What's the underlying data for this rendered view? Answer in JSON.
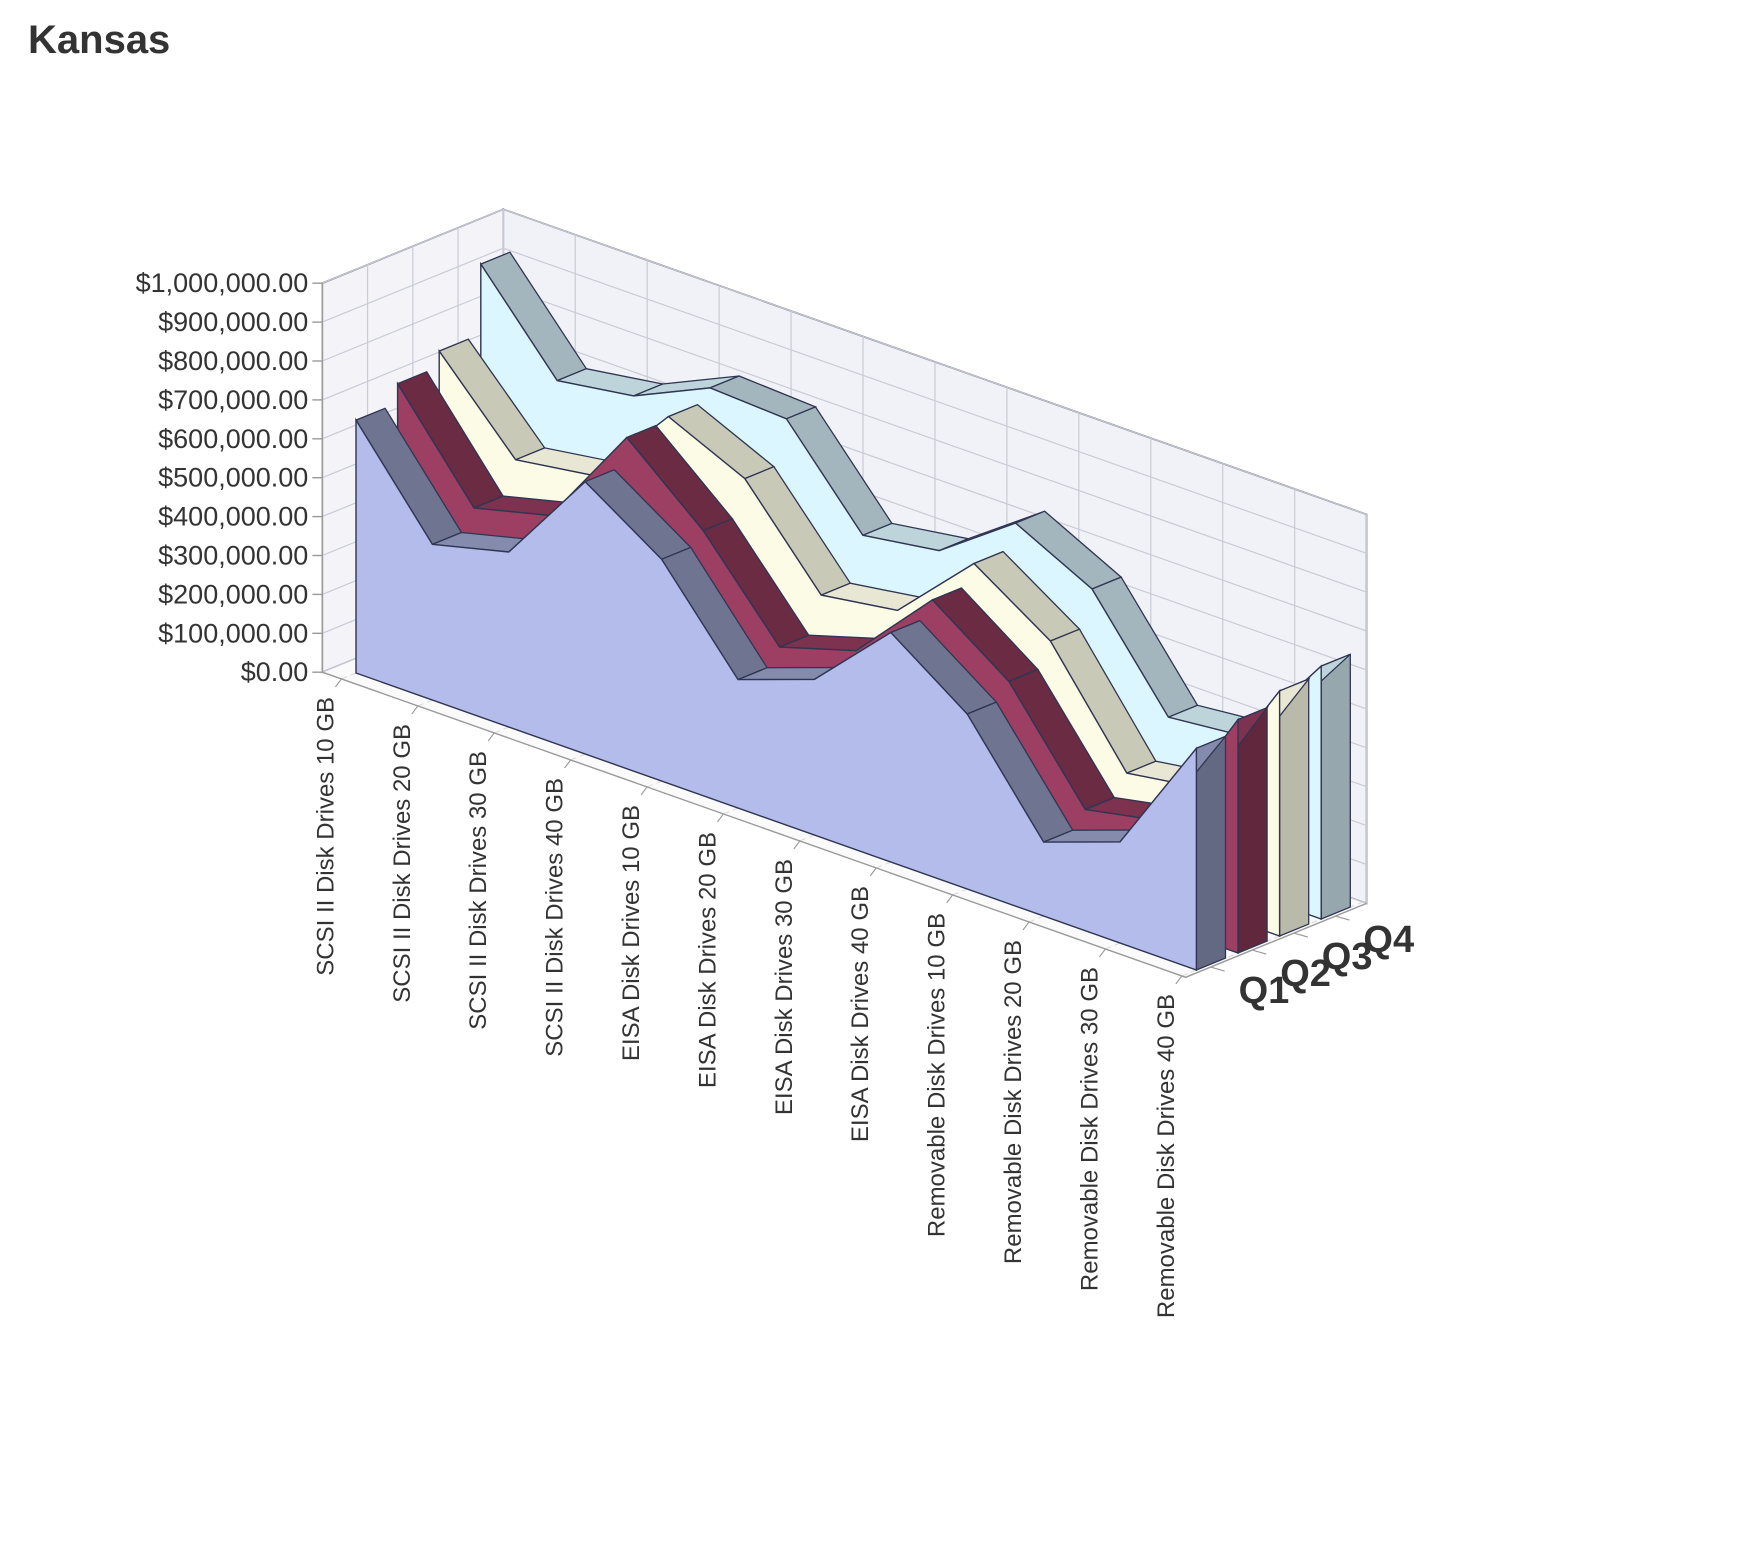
{
  "chart_data": {
    "type": "area",
    "variant": "3d-area",
    "title": "Kansas",
    "xlabel": "",
    "ylabel": "",
    "ylim": [
      0,
      1000000
    ],
    "y_ticks": [
      "$0.00",
      "$100,000.00",
      "$200,000.00",
      "$300,000.00",
      "$400,000.00",
      "$500,000.00",
      "$600,000.00",
      "$700,000.00",
      "$800,000.00",
      "$900,000.00",
      "$1,000,000.00"
    ],
    "categories": [
      "SCSI II Disk Drives 10 GB",
      "SCSI II Disk Drives 20 GB",
      "SCSI II Disk Drives 30 GB",
      "SCSI II Disk Drives 40 GB",
      "EISA Disk Drives 10 GB",
      "EISA Disk Drives 20 GB",
      "EISA Disk Drives 30 GB",
      "EISA Disk Drives 40 GB",
      "Removable Disk Drives 10 GB",
      "Removable Disk Drives 20 GB",
      "Removable Disk Drives 30 GB",
      "Removable Disk Drives 40 GB"
    ],
    "series": [
      {
        "name": "Q1",
        "values": [
          650000,
          400000,
          450000,
          700000,
          570000,
          330000,
          400000,
          590000,
          450000,
          190000,
          260000,
          570000
        ]
      },
      {
        "name": "Q2",
        "values": [
          700000,
          450000,
          500000,
          770000,
          600000,
          370000,
          430000,
          630000,
          490000,
          230000,
          270000,
          600000
        ]
      },
      {
        "name": "Q3",
        "values": [
          740000,
          530000,
          560000,
          780000,
          690000,
          460000,
          490000,
          680000,
          550000,
          280000,
          310000,
          630000
        ]
      },
      {
        "name": "Q4",
        "values": [
          920000,
          690000,
          720000,
          810000,
          800000,
          570000,
          600000,
          740000,
          640000,
          380000,
          400000,
          650000
        ]
      }
    ],
    "colors": {
      "Q1": "#b3bcea",
      "Q2": "#9c3f63",
      "Q3": "#fbfbe6",
      "Q4": "#dcf6ff"
    },
    "grid": true,
    "legend": "depth-axis-labels"
  }
}
